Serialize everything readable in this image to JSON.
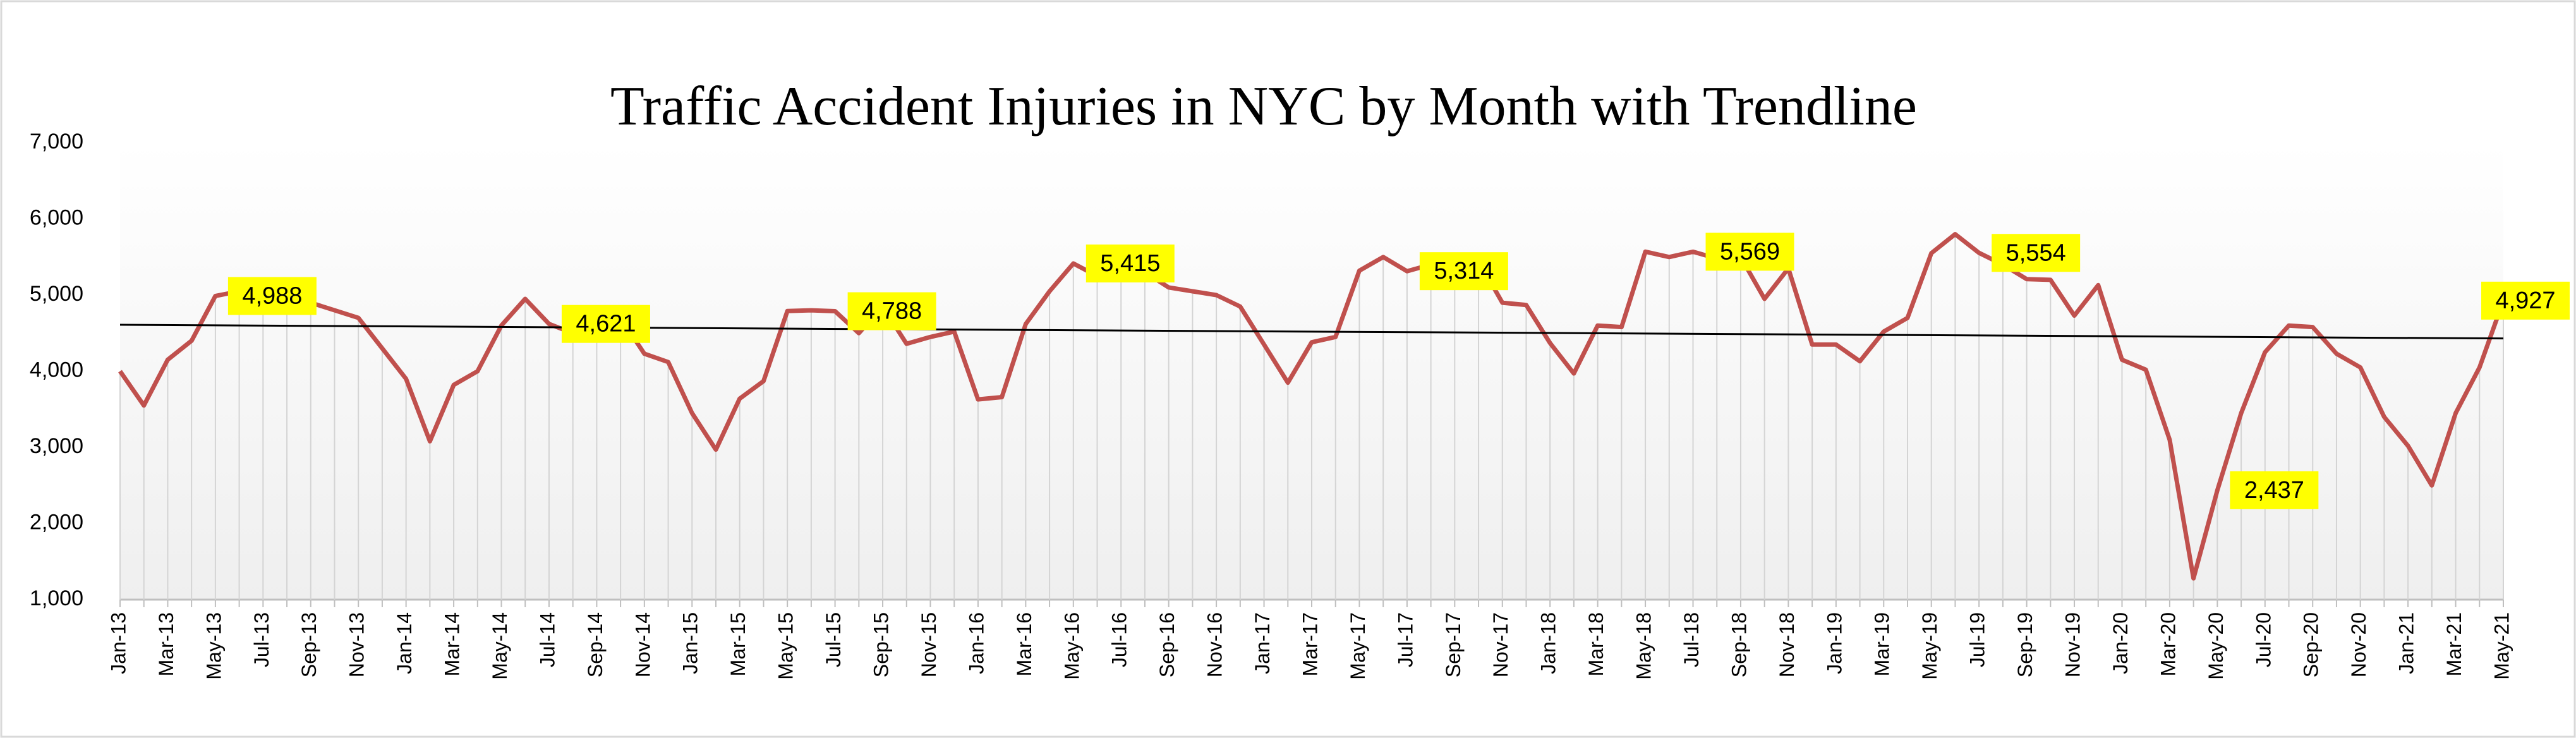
{
  "chart_data": {
    "type": "line",
    "title": "Traffic Accident Injuries in NYC  by Month with  Trendline",
    "categories": [
      "Jan-13",
      null,
      "Mar-13",
      null,
      "May-13",
      null,
      "Jul-13",
      null,
      "Sep-13",
      null,
      "Nov-13",
      null,
      "Jan-14",
      null,
      "Mar-14",
      null,
      "May-14",
      null,
      "Jul-14",
      null,
      "Sep-14",
      null,
      "Nov-14",
      null,
      "Jan-15",
      null,
      "Mar-15",
      null,
      "May-15",
      null,
      "Jul-15",
      null,
      "Sep-15",
      null,
      "Nov-15",
      null,
      "Jan-16",
      null,
      "Mar-16",
      null,
      "May-16",
      null,
      "Jul-16",
      null,
      "Sep-16",
      null,
      "Nov-16",
      null,
      "Jan-17",
      null,
      "Mar-17",
      null,
      "May-17",
      null,
      "Jul-17",
      null,
      "Sep-17",
      null,
      "Nov-17",
      null,
      "Jan-18",
      null,
      "Mar-18",
      null,
      "May-18",
      null,
      "Jul-18",
      null,
      "Sep-18",
      null,
      "Nov-18",
      null,
      "Jan-19",
      null,
      "Mar-19",
      null,
      "May-19",
      null,
      "Jul-19",
      null,
      "Sep-19",
      null,
      "Nov-19",
      null,
      "Jan-20",
      null,
      "Mar-20",
      null,
      "May-20",
      null,
      "Jul-20",
      null,
      "Sep-20",
      null,
      "Nov-20",
      null,
      "Jan-21",
      null,
      "Mar-21",
      null,
      "May-21"
    ],
    "series": [
      {
        "color": "#c0504d",
        "values": [
          4000,
          3550,
          4150,
          4400,
          4988,
          5050,
          5000,
          4950,
          4900,
          4800,
          4700,
          4300,
          3900,
          3080,
          3820,
          4000,
          4600,
          4950,
          4621,
          4500,
          4450,
          4700,
          4230,
          4120,
          3450,
          2970,
          3640,
          3870,
          4790,
          4800,
          4788,
          4500,
          4850,
          4360,
          4450,
          4520,
          3630,
          3660,
          4620,
          5050,
          5415,
          5250,
          5350,
          5300,
          5100,
          5050,
          5000,
          4850,
          4350,
          3850,
          4380,
          4450,
          5320,
          5500,
          5314,
          5400,
          5420,
          5450,
          4900,
          4870,
          4370,
          3970,
          4600,
          4580,
          5570,
          5500,
          5569,
          5480,
          5500,
          4950,
          5350,
          4350,
          4350,
          4130,
          4520,
          4700,
          5550,
          5800,
          5554,
          5400,
          5210,
          5200,
          4730,
          5130,
          4150,
          4020,
          3100,
          1280,
          2437,
          3450,
          4250,
          4600,
          4580,
          4230,
          4050,
          3400,
          3020,
          2500,
          3450,
          4050,
          4927
        ],
        "value_labels": [
          null,
          null,
          null,
          null,
          "4,988",
          null,
          null,
          null,
          null,
          null,
          null,
          null,
          null,
          null,
          null,
          null,
          null,
          null,
          "4,621",
          null,
          null,
          null,
          null,
          null,
          null,
          null,
          null,
          null,
          null,
          null,
          "4,788",
          null,
          null,
          null,
          null,
          null,
          null,
          null,
          null,
          null,
          "5,415",
          null,
          null,
          null,
          null,
          null,
          null,
          null,
          null,
          null,
          null,
          null,
          null,
          null,
          "5,314",
          null,
          null,
          null,
          null,
          null,
          null,
          null,
          null,
          null,
          null,
          null,
          "5,569",
          null,
          null,
          null,
          null,
          null,
          null,
          null,
          null,
          null,
          null,
          null,
          "5,554",
          null,
          null,
          null,
          null,
          null,
          null,
          null,
          null,
          null,
          "2,437",
          null,
          null,
          null,
          null,
          null,
          null,
          null,
          null,
          null,
          null,
          null,
          "4,927"
        ]
      }
    ],
    "trendline": {
      "start": 4610,
      "end": 4430,
      "color": "#000000"
    },
    "ylim": [
      1000,
      7000
    ],
    "yticks": [
      {
        "value": 1000,
        "label": "1,000"
      },
      {
        "value": 2000,
        "label": "2,000"
      },
      {
        "value": 3000,
        "label": "3,000"
      },
      {
        "value": 4000,
        "label": "4,000"
      },
      {
        "value": 5000,
        "label": "5,000"
      },
      {
        "value": 6000,
        "label": "6,000"
      },
      {
        "value": 7000,
        "label": "7,000"
      }
    ],
    "drop_lines": true
  }
}
